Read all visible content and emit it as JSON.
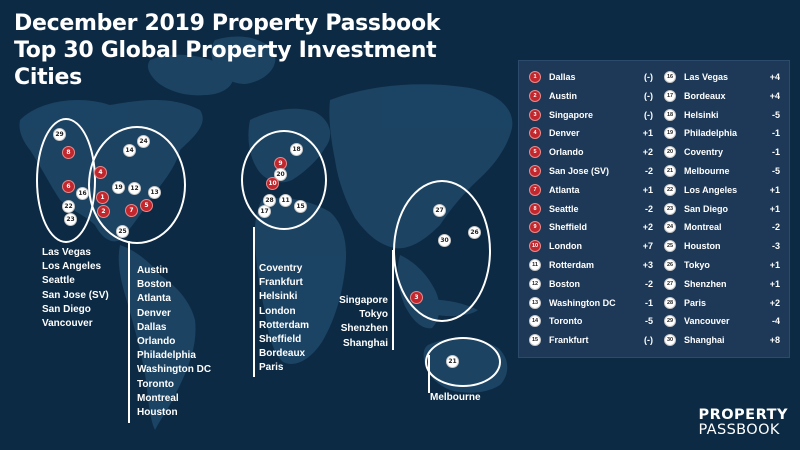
{
  "title": {
    "line1": "December 2019 Property Passbook",
    "line2": "Top 30 Global Property Investment",
    "line3": "Cities"
  },
  "markers": {
    "north_america_west": [
      {
        "n": "29",
        "color": "white"
      },
      {
        "n": "8",
        "color": "red"
      },
      {
        "n": "6",
        "color": "red"
      },
      {
        "n": "16",
        "color": "white"
      },
      {
        "n": "22",
        "color": "white"
      },
      {
        "n": "23",
        "color": "white"
      }
    ],
    "north_america_east": [
      {
        "n": "24",
        "color": "white"
      },
      {
        "n": "14",
        "color": "white"
      },
      {
        "n": "4",
        "color": "red"
      },
      {
        "n": "19",
        "color": "white"
      },
      {
        "n": "12",
        "color": "white"
      },
      {
        "n": "13",
        "color": "white"
      },
      {
        "n": "1",
        "color": "red"
      },
      {
        "n": "2",
        "color": "red"
      },
      {
        "n": "7",
        "color": "red"
      },
      {
        "n": "5",
        "color": "red"
      },
      {
        "n": "25",
        "color": "white"
      }
    ],
    "europe": [
      {
        "n": "18",
        "color": "white"
      },
      {
        "n": "9",
        "color": "red"
      },
      {
        "n": "20",
        "color": "white"
      },
      {
        "n": "10",
        "color": "red"
      },
      {
        "n": "28",
        "color": "white"
      },
      {
        "n": "11",
        "color": "white"
      },
      {
        "n": "17",
        "color": "white"
      },
      {
        "n": "15",
        "color": "white"
      }
    ],
    "asia": [
      {
        "n": "27",
        "color": "white"
      },
      {
        "n": "30",
        "color": "white"
      },
      {
        "n": "26",
        "color": "white"
      },
      {
        "n": "3",
        "color": "red"
      }
    ],
    "oceania": [
      {
        "n": "21",
        "color": "white"
      }
    ]
  },
  "region_lists": {
    "west": [
      "Las Vegas",
      "Los Angeles",
      "Seattle",
      "San Jose (SV)",
      "San Diego",
      "Vancouver"
    ],
    "east": [
      "Austin",
      "Boston",
      "Atlanta",
      "Denver",
      "Dallas",
      "Orlando",
      "Philadelphia",
      "Washington DC",
      "Toronto",
      "Montreal",
      "Houston"
    ],
    "europe": [
      "Coventry",
      "Frankfurt",
      "Helsinki",
      "London",
      "Rotterdam",
      "Sheffield",
      "Bordeaux",
      "Paris"
    ],
    "asia": [
      "Singapore",
      "Tokyo",
      "Shenzhen",
      "Shanghai"
    ],
    "oceania": [
      "Melbourne"
    ]
  },
  "rankings": {
    "left": [
      {
        "rank": "1",
        "city": "Dallas",
        "change": "(-)",
        "color": "red"
      },
      {
        "rank": "2",
        "city": "Austin",
        "change": "(-)",
        "color": "red"
      },
      {
        "rank": "3",
        "city": "Singapore",
        "change": "(-)",
        "color": "red"
      },
      {
        "rank": "4",
        "city": "Denver",
        "change": "+1",
        "color": "red"
      },
      {
        "rank": "5",
        "city": "Orlando",
        "change": "+2",
        "color": "red"
      },
      {
        "rank": "6",
        "city": "San Jose (SV)",
        "change": "-2",
        "color": "red"
      },
      {
        "rank": "7",
        "city": "Atlanta",
        "change": "+1",
        "color": "red"
      },
      {
        "rank": "8",
        "city": "Seattle",
        "change": "-2",
        "color": "red"
      },
      {
        "rank": "9",
        "city": "Sheffield",
        "change": "+2",
        "color": "red"
      },
      {
        "rank": "10",
        "city": "London",
        "change": "+7",
        "color": "red"
      },
      {
        "rank": "11",
        "city": "Rotterdam",
        "change": "+3",
        "color": "white"
      },
      {
        "rank": "12",
        "city": "Boston",
        "change": "-2",
        "color": "white"
      },
      {
        "rank": "13",
        "city": "Washington DC",
        "change": "-1",
        "color": "white"
      },
      {
        "rank": "14",
        "city": "Toronto",
        "change": "-5",
        "color": "white"
      },
      {
        "rank": "15",
        "city": "Frankfurt",
        "change": "(-)",
        "color": "white"
      }
    ],
    "right": [
      {
        "rank": "16",
        "city": "Las Vegas",
        "change": "+4",
        "color": "white"
      },
      {
        "rank": "17",
        "city": "Bordeaux",
        "change": "+4",
        "color": "white"
      },
      {
        "rank": "18",
        "city": "Helsinki",
        "change": "-5",
        "color": "white"
      },
      {
        "rank": "19",
        "city": "Philadelphia",
        "change": "-1",
        "color": "white"
      },
      {
        "rank": "20",
        "city": "Coventry",
        "change": "-1",
        "color": "white"
      },
      {
        "rank": "21",
        "city": "Melbourne",
        "change": "-5",
        "color": "white"
      },
      {
        "rank": "22",
        "city": "Los Angeles",
        "change": "+1",
        "color": "white"
      },
      {
        "rank": "23",
        "city": "San Diego",
        "change": "+1",
        "color": "white"
      },
      {
        "rank": "24",
        "city": "Montreal",
        "change": "-2",
        "color": "white"
      },
      {
        "rank": "25",
        "city": "Houston",
        "change": "-3",
        "color": "white"
      },
      {
        "rank": "26",
        "city": "Tokyo",
        "change": "+1",
        "color": "white"
      },
      {
        "rank": "27",
        "city": "Shenzhen",
        "change": "+1",
        "color": "white"
      },
      {
        "rank": "28",
        "city": "Paris",
        "change": "+2",
        "color": "white"
      },
      {
        "rank": "29",
        "city": "Vancouver",
        "change": "-4",
        "color": "white"
      },
      {
        "rank": "30",
        "city": "Shanghai",
        "change": "+8",
        "color": "white"
      }
    ]
  },
  "logo": {
    "line1": "PROPERTY",
    "line2": "PASSBOOK"
  },
  "colors": {
    "background": "#0c2a44",
    "land": "#1f4868",
    "panel": "#1e3957",
    "red_marker": "#c1272d",
    "white_marker": "#ffffff"
  }
}
